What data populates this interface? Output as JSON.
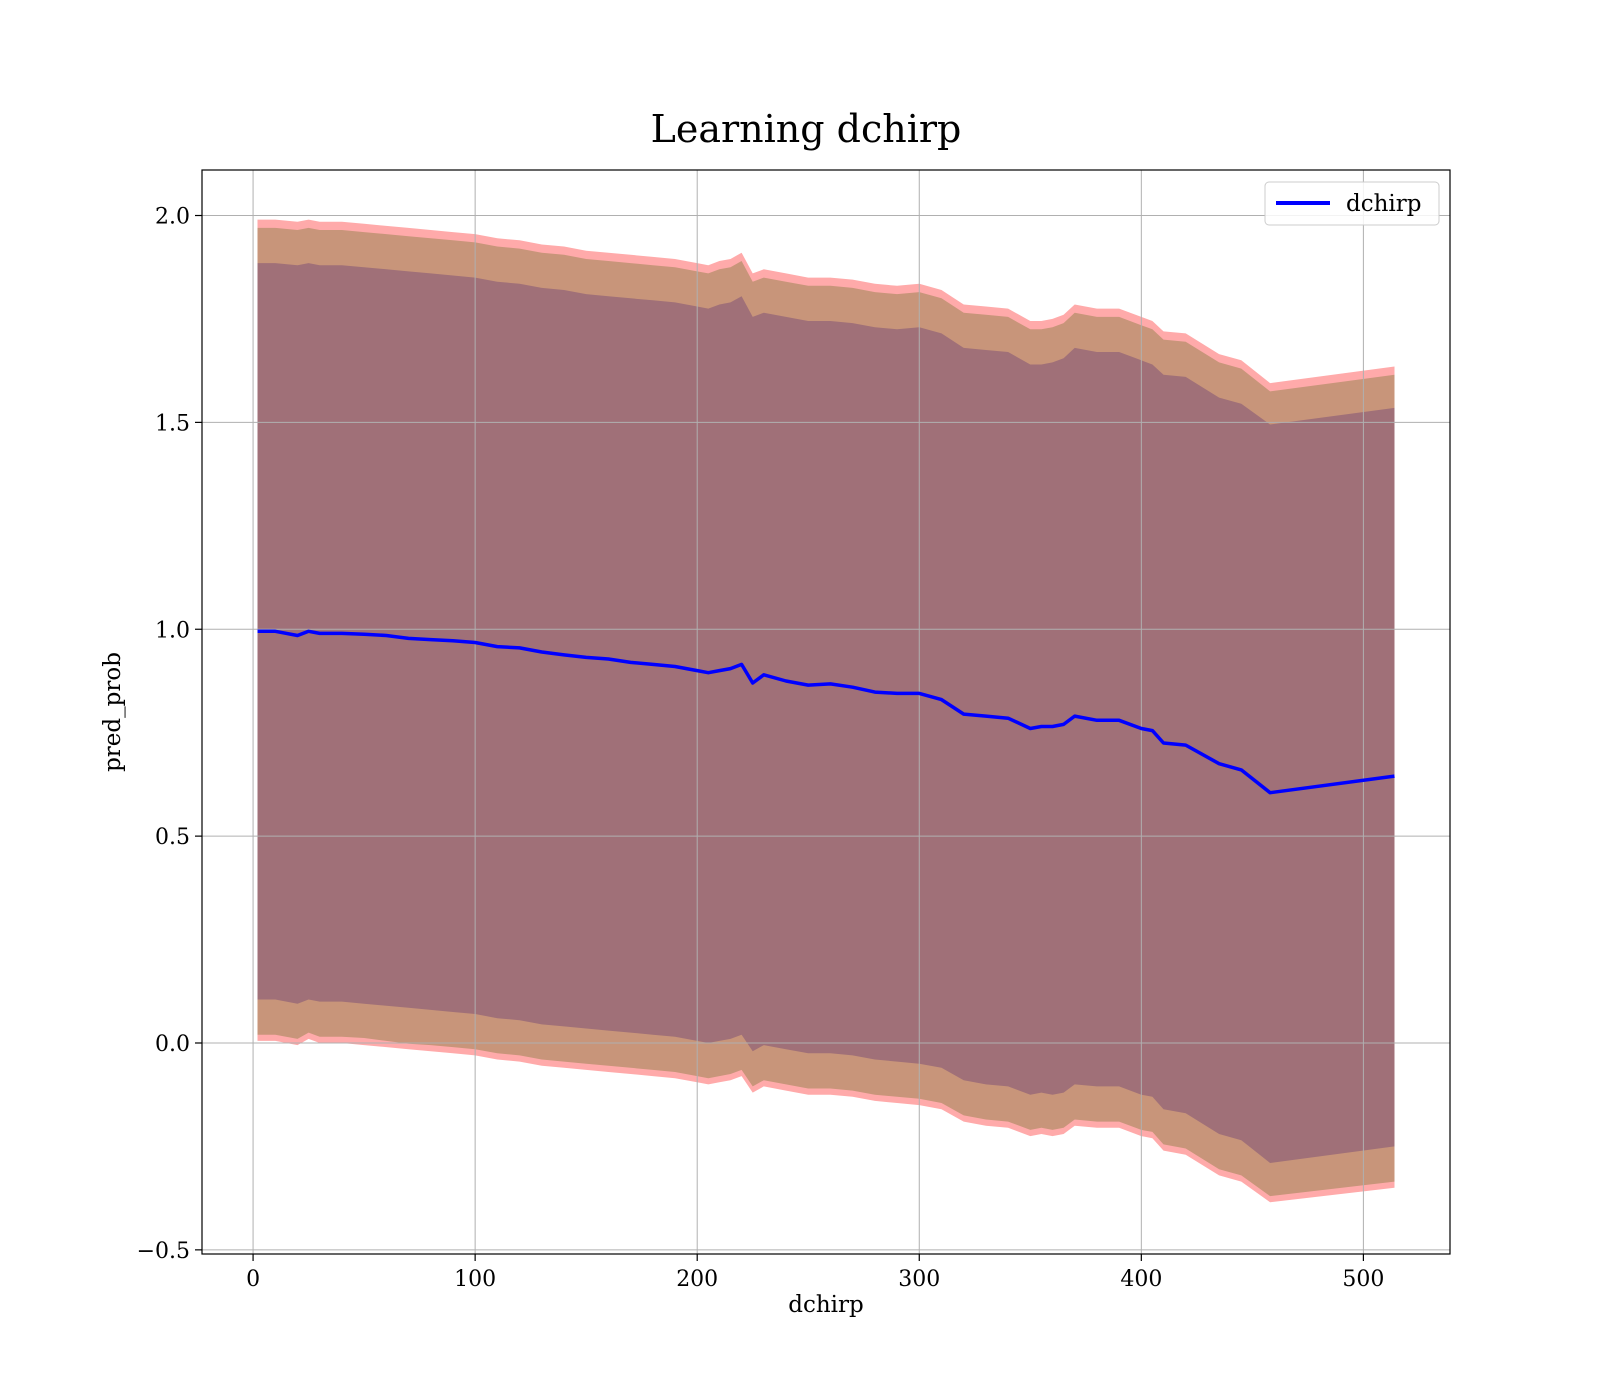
{
  "chart_data": {
    "type": "line",
    "title": "Learning dchirp",
    "xlabel": "dchirp",
    "ylabel": "pred_prob",
    "xlim": [
      -23,
      539
    ],
    "ylim": [
      -0.51,
      2.11
    ],
    "xticks": [
      0,
      100,
      200,
      300,
      400,
      500
    ],
    "xtick_labels": [
      "0",
      "100",
      "200",
      "300",
      "400",
      "500"
    ],
    "yticks": [
      -0.5,
      0.0,
      0.5,
      1.0,
      1.5,
      2.0
    ],
    "ytick_labels": [
      "−0.5",
      "0.0",
      "0.5",
      "1.0",
      "1.5",
      "2.0"
    ],
    "grid": true,
    "legend_position": "top-right",
    "colors": {
      "line": "#0000ff",
      "band_outer": "#ffaaaa",
      "band_middle": "#c8957a",
      "band_inner": "#a07078",
      "grid": "#b0b0b0"
    },
    "series": [
      {
        "name": "dchirp",
        "x": [
          2,
          10,
          20,
          25,
          30,
          40,
          50,
          60,
          70,
          80,
          90,
          100,
          110,
          120,
          130,
          140,
          150,
          160,
          170,
          180,
          190,
          200,
          205,
          210,
          215,
          220,
          225,
          230,
          240,
          250,
          260,
          270,
          280,
          290,
          300,
          310,
          320,
          330,
          340,
          350,
          355,
          360,
          365,
          370,
          380,
          390,
          400,
          405,
          410,
          420,
          435,
          445,
          458,
          514
        ],
        "y": [
          0.995,
          0.995,
          0.985,
          0.995,
          0.99,
          0.99,
          0.988,
          0.985,
          0.978,
          0.975,
          0.972,
          0.968,
          0.958,
          0.955,
          0.945,
          0.938,
          0.932,
          0.928,
          0.92,
          0.915,
          0.91,
          0.9,
          0.895,
          0.9,
          0.905,
          0.915,
          0.87,
          0.89,
          0.875,
          0.865,
          0.868,
          0.86,
          0.848,
          0.845,
          0.845,
          0.83,
          0.795,
          0.79,
          0.785,
          0.76,
          0.765,
          0.765,
          0.77,
          0.79,
          0.78,
          0.78,
          0.76,
          0.755,
          0.725,
          0.72,
          0.675,
          0.66,
          0.605,
          0.645
        ]
      }
    ],
    "bands": [
      {
        "role": "outer",
        "x": [
          2,
          10,
          20,
          25,
          30,
          40,
          50,
          60,
          70,
          80,
          90,
          100,
          110,
          120,
          130,
          140,
          150,
          160,
          170,
          180,
          190,
          200,
          205,
          210,
          215,
          220,
          225,
          230,
          240,
          250,
          260,
          270,
          280,
          290,
          300,
          310,
          320,
          330,
          340,
          350,
          355,
          360,
          365,
          370,
          380,
          390,
          400,
          405,
          410,
          420,
          435,
          445,
          458,
          514
        ],
        "lower": [
          0.005,
          0.005,
          -0.005,
          0.01,
          0.0,
          0.0,
          -0.005,
          -0.01,
          -0.015,
          -0.02,
          -0.025,
          -0.03,
          -0.04,
          -0.045,
          -0.055,
          -0.06,
          -0.065,
          -0.07,
          -0.075,
          -0.08,
          -0.085,
          -0.095,
          -0.1,
          -0.095,
          -0.09,
          -0.08,
          -0.12,
          -0.105,
          -0.115,
          -0.125,
          -0.125,
          -0.13,
          -0.14,
          -0.145,
          -0.15,
          -0.16,
          -0.19,
          -0.2,
          -0.205,
          -0.225,
          -0.22,
          -0.225,
          -0.22,
          -0.2,
          -0.205,
          -0.205,
          -0.225,
          -0.23,
          -0.26,
          -0.27,
          -0.32,
          -0.335,
          -0.385,
          -0.35
        ],
        "upper": [
          1.99,
          1.99,
          1.985,
          1.99,
          1.985,
          1.985,
          1.98,
          1.975,
          1.97,
          1.965,
          1.96,
          1.955,
          1.945,
          1.94,
          1.93,
          1.925,
          1.915,
          1.91,
          1.905,
          1.9,
          1.895,
          1.885,
          1.88,
          1.89,
          1.895,
          1.91,
          1.86,
          1.87,
          1.86,
          1.85,
          1.85,
          1.845,
          1.835,
          1.83,
          1.835,
          1.82,
          1.785,
          1.78,
          1.775,
          1.745,
          1.745,
          1.75,
          1.76,
          1.785,
          1.775,
          1.775,
          1.755,
          1.745,
          1.72,
          1.715,
          1.665,
          1.65,
          1.595,
          1.635
        ]
      },
      {
        "role": "middle",
        "x": [
          2,
          10,
          20,
          25,
          30,
          40,
          50,
          60,
          70,
          80,
          90,
          100,
          110,
          120,
          130,
          140,
          150,
          160,
          170,
          180,
          190,
          200,
          205,
          210,
          215,
          220,
          225,
          230,
          240,
          250,
          260,
          270,
          280,
          290,
          300,
          310,
          320,
          330,
          340,
          350,
          355,
          360,
          365,
          370,
          380,
          390,
          400,
          405,
          410,
          420,
          435,
          445,
          458,
          514
        ],
        "lower": [
          0.02,
          0.02,
          0.01,
          0.025,
          0.015,
          0.015,
          0.012,
          0.005,
          -0.002,
          -0.005,
          -0.01,
          -0.015,
          -0.025,
          -0.03,
          -0.04,
          -0.045,
          -0.05,
          -0.055,
          -0.06,
          -0.065,
          -0.07,
          -0.08,
          -0.085,
          -0.08,
          -0.075,
          -0.065,
          -0.105,
          -0.09,
          -0.1,
          -0.11,
          -0.11,
          -0.115,
          -0.125,
          -0.13,
          -0.135,
          -0.145,
          -0.175,
          -0.185,
          -0.19,
          -0.21,
          -0.205,
          -0.21,
          -0.205,
          -0.185,
          -0.19,
          -0.19,
          -0.21,
          -0.215,
          -0.245,
          -0.255,
          -0.305,
          -0.32,
          -0.37,
          -0.335
        ],
        "upper": [
          1.97,
          1.97,
          1.965,
          1.97,
          1.965,
          1.965,
          1.96,
          1.955,
          1.95,
          1.945,
          1.94,
          1.935,
          1.925,
          1.92,
          1.91,
          1.905,
          1.895,
          1.89,
          1.885,
          1.88,
          1.875,
          1.865,
          1.86,
          1.87,
          1.875,
          1.89,
          1.84,
          1.85,
          1.84,
          1.83,
          1.83,
          1.825,
          1.815,
          1.81,
          1.815,
          1.8,
          1.765,
          1.76,
          1.755,
          1.725,
          1.725,
          1.73,
          1.74,
          1.765,
          1.755,
          1.755,
          1.735,
          1.725,
          1.7,
          1.695,
          1.645,
          1.63,
          1.575,
          1.615
        ]
      },
      {
        "role": "inner",
        "x": [
          2,
          10,
          20,
          25,
          30,
          40,
          50,
          60,
          70,
          80,
          90,
          100,
          110,
          120,
          130,
          140,
          150,
          160,
          170,
          180,
          190,
          200,
          205,
          210,
          215,
          220,
          225,
          230,
          240,
          250,
          260,
          270,
          280,
          290,
          300,
          310,
          320,
          330,
          340,
          350,
          355,
          360,
          365,
          370,
          380,
          390,
          400,
          405,
          410,
          420,
          435,
          445,
          458,
          514
        ],
        "lower": [
          0.105,
          0.105,
          0.095,
          0.105,
          0.1,
          0.1,
          0.095,
          0.09,
          0.085,
          0.08,
          0.075,
          0.07,
          0.06,
          0.055,
          0.045,
          0.04,
          0.035,
          0.03,
          0.025,
          0.02,
          0.015,
          0.005,
          0.0,
          0.005,
          0.01,
          0.02,
          -0.02,
          -0.005,
          -0.015,
          -0.025,
          -0.025,
          -0.03,
          -0.04,
          -0.045,
          -0.05,
          -0.06,
          -0.09,
          -0.1,
          -0.105,
          -0.125,
          -0.12,
          -0.125,
          -0.12,
          -0.1,
          -0.105,
          -0.105,
          -0.125,
          -0.13,
          -0.16,
          -0.17,
          -0.22,
          -0.235,
          -0.29,
          -0.25
        ],
        "upper": [
          1.885,
          1.885,
          1.88,
          1.885,
          1.88,
          1.88,
          1.875,
          1.87,
          1.865,
          1.86,
          1.855,
          1.85,
          1.84,
          1.835,
          1.825,
          1.82,
          1.81,
          1.805,
          1.8,
          1.795,
          1.79,
          1.78,
          1.775,
          1.785,
          1.79,
          1.805,
          1.755,
          1.765,
          1.755,
          1.745,
          1.745,
          1.74,
          1.73,
          1.725,
          1.73,
          1.715,
          1.68,
          1.675,
          1.67,
          1.64,
          1.64,
          1.645,
          1.655,
          1.68,
          1.67,
          1.67,
          1.65,
          1.64,
          1.615,
          1.61,
          1.56,
          1.545,
          1.495,
          1.535
        ]
      }
    ]
  }
}
